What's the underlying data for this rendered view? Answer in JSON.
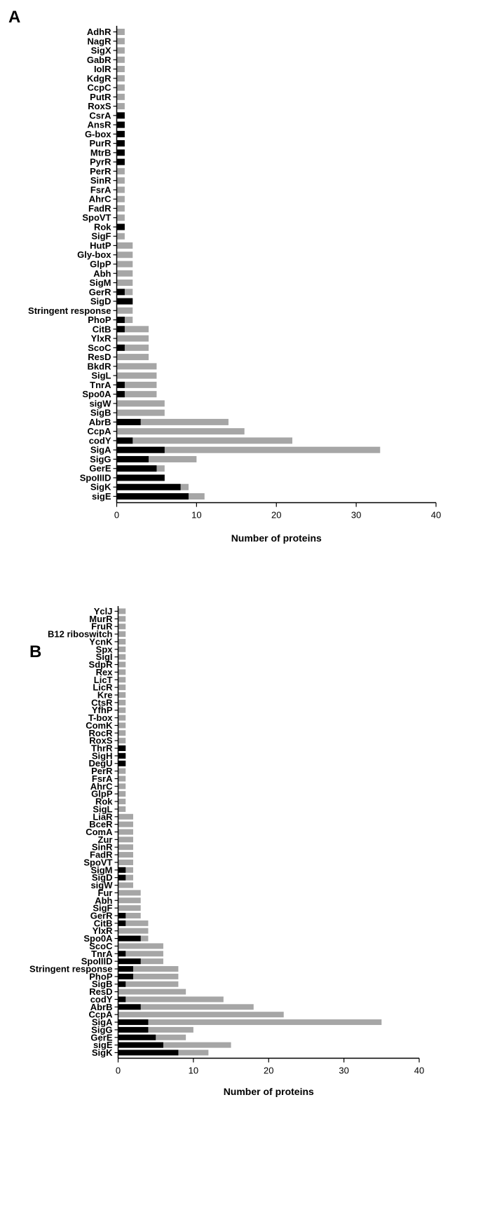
{
  "colors": {
    "total": "#a6a6a6",
    "subset": "#000000",
    "axis": "#000000"
  },
  "chart_data": [
    {
      "panel": "A",
      "type": "bar",
      "orientation": "horizontal",
      "stacked_overlay": true,
      "xlabel": "Number of proteins",
      "xlim": [
        0,
        40
      ],
      "xticks": [
        0,
        10,
        20,
        30,
        40
      ],
      "categories": [
        "AdhR",
        "NagR",
        "SigX",
        "GabR",
        "IolR",
        "KdgR",
        "CcpC",
        "PutR",
        "RoxS",
        "CsrA",
        "AnsR",
        "G-box",
        "PurR",
        "MtrB",
        "PyrR",
        "PerR",
        "SinR",
        "FsrA",
        "AhrC",
        "FadR",
        "SpoVT",
        "Rok",
        "SigF",
        "HutP",
        "Gly-box",
        "GlpP",
        "Abh",
        "SigM",
        "GerR",
        "SigD",
        "Stringent response",
        "PhoP",
        "CitB",
        "YlxR",
        "ScoC",
        "ResD",
        "BkdR",
        "SigL",
        "TnrA",
        "Spo0A",
        "sigW",
        "SigB",
        "AbrB",
        "CcpA",
        "codY",
        "SigA",
        "SigG",
        "GerE",
        "SpoIIID",
        "SigK",
        "sigE"
      ],
      "series": [
        {
          "values": [
            1,
            1,
            1,
            1,
            1,
            1,
            1,
            1,
            1,
            1,
            1,
            1,
            1,
            1,
            1,
            1,
            1,
            1,
            1,
            1,
            1,
            1,
            1,
            2,
            2,
            2,
            2,
            2,
            2,
            2,
            2,
            2,
            4,
            4,
            4,
            4,
            5,
            5,
            5,
            5,
            6,
            6,
            14,
            16,
            22,
            33,
            10,
            6,
            6,
            9,
            11
          ]
        },
        {
          "values": [
            0,
            0,
            0,
            0,
            0,
            0,
            0,
            0,
            0,
            1,
            1,
            1,
            1,
            1,
            1,
            0,
            0,
            0,
            0,
            0,
            0,
            1,
            0,
            0,
            0,
            0,
            0,
            0,
            1,
            2,
            0,
            1,
            1,
            0,
            1,
            0,
            0,
            0,
            1,
            1,
            0,
            0,
            3,
            0,
            2,
            6,
            4,
            5,
            6,
            8,
            9
          ]
        }
      ]
    },
    {
      "panel": "B",
      "type": "bar",
      "orientation": "horizontal",
      "stacked_overlay": true,
      "xlabel": "Number of proteins",
      "xlim": [
        0,
        40
      ],
      "xticks": [
        0,
        10,
        20,
        30,
        40
      ],
      "categories": [
        "YclJ",
        "MurR",
        "FruR",
        "B12 riboswitch",
        "YcnK",
        "Spx",
        "SigI",
        "SdpR",
        "Rex",
        "LicT",
        "LicR",
        "Kre",
        "CtsR",
        "YfhP",
        "T-box",
        "ComK",
        "RocR",
        "RoxS",
        "ThrR",
        "SigH",
        "DegU",
        "PerR",
        "FsrA",
        "AhrC",
        "GlpP",
        "Rok",
        "SigL",
        "LiaR",
        "BceR",
        "ComA",
        "Zur",
        "SinR",
        "FadR",
        "SpoVT",
        "SigM",
        "SigD",
        "sigW",
        "Fur",
        "Abh",
        "SigF",
        "GerR",
        "CitB",
        "YlxR",
        "Spo0A",
        "ScoC",
        "TnrA",
        "SpoIIID",
        "Stringent response",
        "PhoP",
        "SigB",
        "ResD",
        "codY",
        "AbrB",
        "CcpA",
        "SigA",
        "SigG",
        "GerE",
        "sigE",
        "SigK"
      ],
      "series": [
        {
          "values": [
            1,
            1,
            1,
            1,
            1,
            1,
            1,
            1,
            1,
            1,
            1,
            1,
            1,
            1,
            1,
            1,
            1,
            1,
            1,
            1,
            1,
            1,
            1,
            1,
            1,
            1,
            1,
            2,
            2,
            2,
            2,
            2,
            2,
            2,
            2,
            2,
            2,
            3,
            3,
            3,
            3,
            4,
            4,
            4,
            6,
            6,
            6,
            8,
            8,
            8,
            9,
            14,
            18,
            22,
            35,
            10,
            9,
            15,
            12
          ]
        },
        {
          "values": [
            0,
            0,
            0,
            0,
            0,
            0,
            0,
            0,
            0,
            0,
            0,
            0,
            0,
            0,
            0,
            0,
            0,
            0,
            1,
            1,
            1,
            0,
            0,
            0,
            0,
            0,
            0,
            0,
            0,
            0,
            0,
            0,
            0,
            0,
            1,
            1,
            0,
            0,
            0,
            0,
            1,
            1,
            0,
            3,
            0,
            1,
            3,
            2,
            2,
            1,
            0,
            1,
            3,
            0,
            4,
            4,
            5,
            6,
            8
          ]
        }
      ]
    }
  ]
}
